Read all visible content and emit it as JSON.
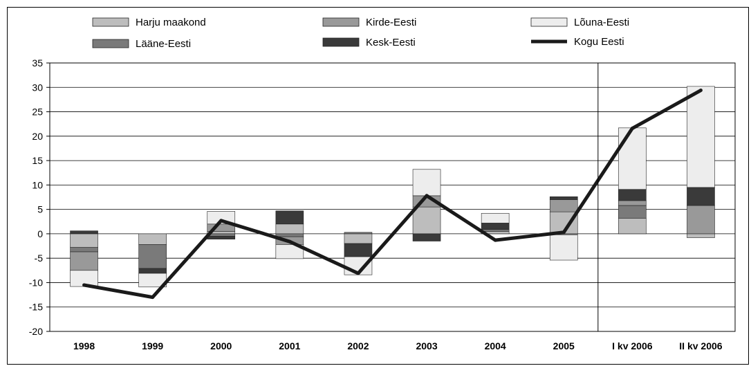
{
  "chart_data": {
    "type": "bar",
    "stacked": true,
    "categories": [
      "1998",
      "1999",
      "2000",
      "2001",
      "2002",
      "2003",
      "2004",
      "2005",
      "I kv 2006",
      "II kv 2006"
    ],
    "ylim": [
      -20,
      35
    ],
    "yticks": [
      35,
      30,
      25,
      20,
      15,
      10,
      5,
      0,
      -5,
      -10,
      -15,
      -20
    ],
    "grid": true,
    "legend_position": "top",
    "series": [
      {
        "name": "Harju maakond",
        "color": "#bdbdbd",
        "values": [
          -2.8,
          -2.2,
          0.5,
          2.0,
          -2.0,
          5.5,
          0.5,
          4.5,
          3.2,
          -0.8
        ]
      },
      {
        "name": "Lääne-Eesti",
        "color": "#7a7a7a",
        "values": [
          -0.9,
          -4.9,
          -0.5,
          -0.6,
          0.3,
          0.0,
          0.4,
          -0.2,
          2.6,
          0.0
        ]
      },
      {
        "name": "Kirde-Eesti",
        "color": "#999999",
        "values": [
          -3.8,
          0.0,
          1.5,
          -1.6,
          0.0,
          2.3,
          0.0,
          2.5,
          1.0,
          5.8
        ]
      },
      {
        "name": "Kesk-Eesti",
        "color": "#3a3a3a",
        "values": [
          0.6,
          -1.0,
          -0.6,
          2.7,
          -2.7,
          -1.5,
          1.3,
          0.6,
          2.3,
          3.7
        ]
      },
      {
        "name": "Lõuna-Eesti",
        "color": "#ededed",
        "values": [
          -3.3,
          -2.8,
          2.6,
          -2.9,
          -3.7,
          5.4,
          2.0,
          -5.2,
          12.6,
          20.7
        ]
      }
    ],
    "line": {
      "name": "Kogu Eesti",
      "color": "#1a1a1a",
      "values": [
        -10.5,
        -13.0,
        2.7,
        -1.6,
        -8.1,
        7.8,
        -1.3,
        0.3,
        21.6,
        29.4
      ]
    },
    "divider_after_category": "2005"
  }
}
